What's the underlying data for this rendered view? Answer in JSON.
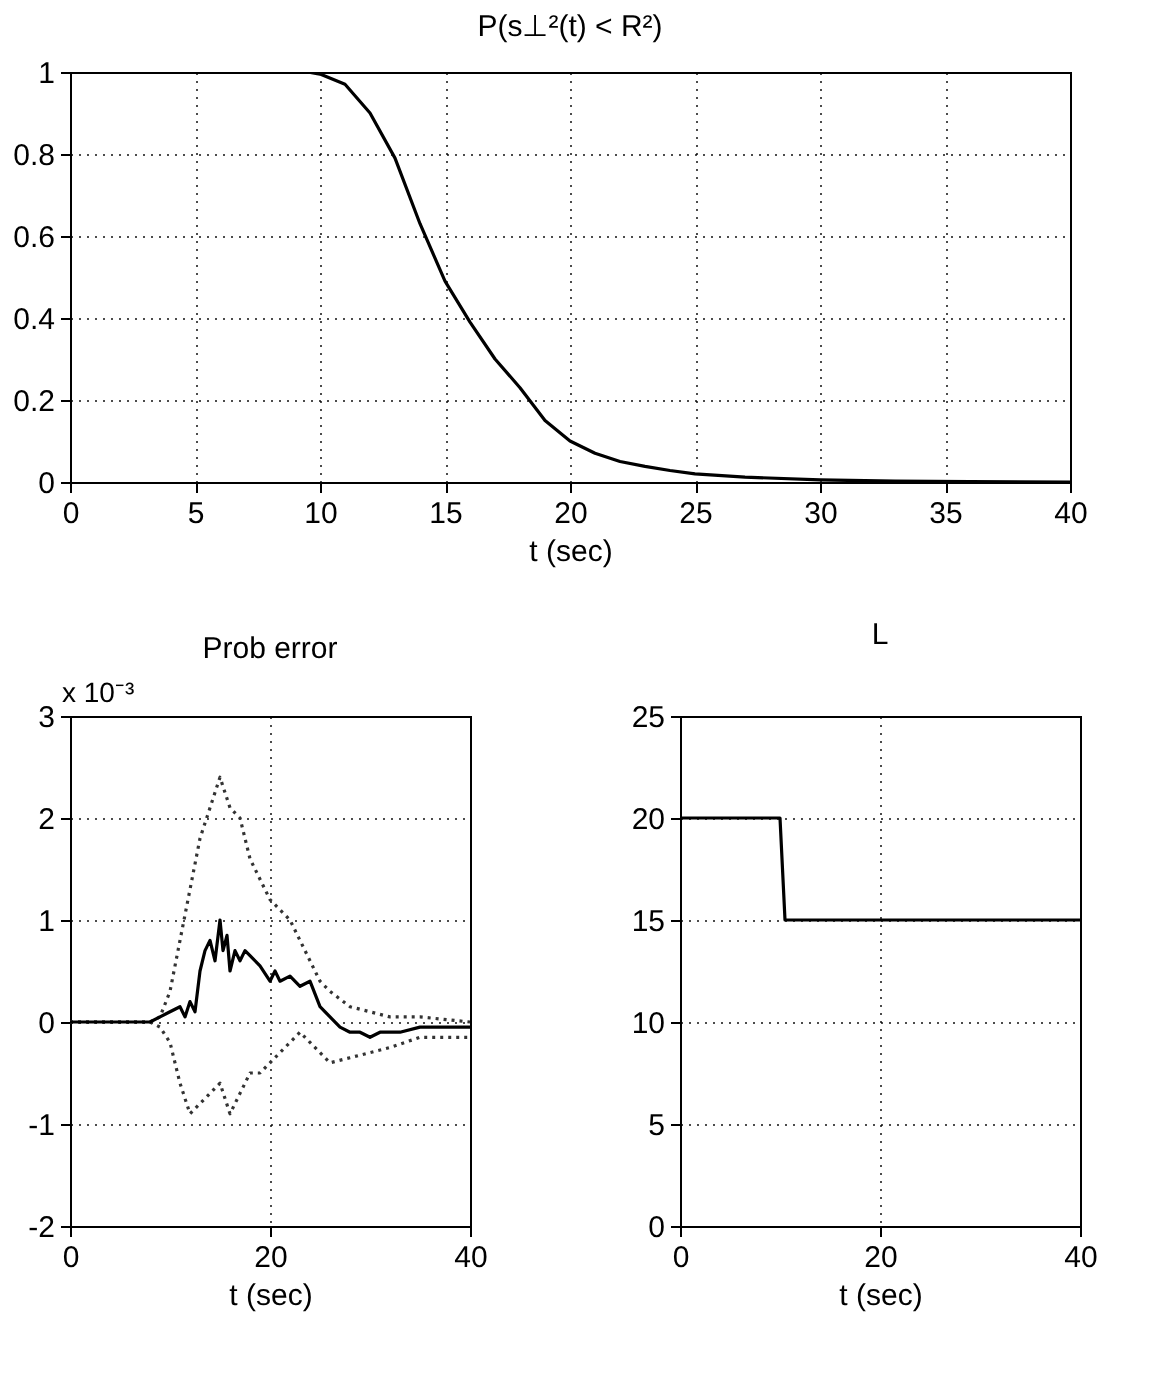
{
  "chart_data": [
    {
      "type": "line",
      "title": "P(s⊥²(t) < R²)",
      "xlabel": "t (sec)",
      "xlim": [
        0,
        40
      ],
      "xticks": [
        0,
        5,
        10,
        15,
        20,
        25,
        30,
        35,
        40
      ],
      "ylim": [
        0,
        1
      ],
      "yticks": [
        0,
        0.2,
        0.4,
        0.6,
        0.8,
        1
      ],
      "grid": true,
      "series": [
        {
          "color": "#000000",
          "line_style": "solid",
          "x": [
            0,
            2,
            4,
            6,
            8,
            9,
            9.5,
            10,
            11,
            12,
            13,
            14,
            15,
            16,
            17,
            18,
            19,
            20,
            21,
            22,
            23,
            24,
            25,
            27,
            30,
            33,
            36,
            40
          ],
          "values": [
            1,
            1,
            1,
            1,
            1,
            1,
            1,
            0.995,
            0.97,
            0.9,
            0.79,
            0.63,
            0.49,
            0.39,
            0.3,
            0.23,
            0.15,
            0.1,
            0.07,
            0.05,
            0.038,
            0.028,
            0.02,
            0.012,
            0.005,
            0.002,
            0.001,
            0
          ]
        }
      ]
    },
    {
      "type": "line",
      "title": "Prob error",
      "xlabel": "t (sec)",
      "annotations": [
        "x 10⁻³"
      ],
      "xlim": [
        0,
        40
      ],
      "xticks": [
        0,
        20,
        40
      ],
      "ylim": [
        -2,
        3
      ],
      "yticks": [
        -2,
        -1,
        0,
        1,
        2,
        3
      ],
      "grid": true,
      "series": [
        {
          "color": "#333333",
          "line_style": "dotted",
          "x": [
            0,
            8,
            9,
            10,
            11,
            12,
            13,
            14,
            15,
            16,
            17,
            18,
            19,
            20,
            21,
            22,
            23,
            24,
            25,
            26,
            28,
            30,
            32,
            35,
            40
          ],
          "values": [
            0,
            0,
            0.05,
            0.3,
            0.8,
            1.3,
            1.8,
            2.1,
            2.4,
            2.1,
            2.0,
            1.6,
            1.4,
            1.2,
            1.1,
            1.0,
            0.8,
            0.6,
            0.4,
            0.3,
            0.15,
            0.1,
            0.05,
            0.05,
            0
          ]
        },
        {
          "color": "#333333",
          "line_style": "dotted",
          "x": [
            0,
            8,
            9,
            10,
            11,
            12,
            13,
            14,
            15,
            16,
            17,
            18,
            19,
            20,
            21,
            22,
            23,
            24,
            25,
            26,
            28,
            30,
            32,
            35,
            40
          ],
          "values": [
            0,
            0,
            -0.05,
            -0.2,
            -0.6,
            -0.9,
            -0.8,
            -0.7,
            -0.6,
            -0.9,
            -0.7,
            -0.5,
            -0.5,
            -0.4,
            -0.3,
            -0.2,
            -0.1,
            -0.2,
            -0.3,
            -0.4,
            -0.35,
            -0.3,
            -0.25,
            -0.15,
            -0.15
          ]
        },
        {
          "color": "#000000",
          "line_style": "solid",
          "x": [
            0,
            8,
            9,
            10,
            11,
            11.5,
            12,
            12.5,
            13,
            13.5,
            14,
            14.5,
            15,
            15.3,
            15.7,
            16,
            16.5,
            17,
            17.5,
            18,
            19,
            20,
            20.5,
            21,
            22,
            23,
            24,
            25,
            26,
            27,
            28,
            29,
            30,
            31,
            33,
            35,
            37,
            40
          ],
          "values": [
            0,
            0,
            0.05,
            0.1,
            0.15,
            0.05,
            0.2,
            0.1,
            0.5,
            0.7,
            0.8,
            0.6,
            1.0,
            0.7,
            0.85,
            0.5,
            0.7,
            0.6,
            0.7,
            0.65,
            0.55,
            0.4,
            0.5,
            0.4,
            0.45,
            0.35,
            0.4,
            0.15,
            0.05,
            -0.05,
            -0.1,
            -0.1,
            -0.15,
            -0.1,
            -0.1,
            -0.05,
            -0.05,
            -0.05
          ]
        }
      ]
    },
    {
      "type": "line",
      "title": "L",
      "xlabel": "t (sec)",
      "xlim": [
        0,
        40
      ],
      "xticks": [
        0,
        20,
        40
      ],
      "ylim": [
        0,
        25
      ],
      "yticks": [
        0,
        5,
        10,
        15,
        20,
        25
      ],
      "grid": true,
      "series": [
        {
          "color": "#000000",
          "line_style": "solid",
          "x": [
            0,
            10,
            10.5,
            40
          ],
          "values": [
            20,
            20,
            15,
            15
          ]
        }
      ]
    }
  ]
}
